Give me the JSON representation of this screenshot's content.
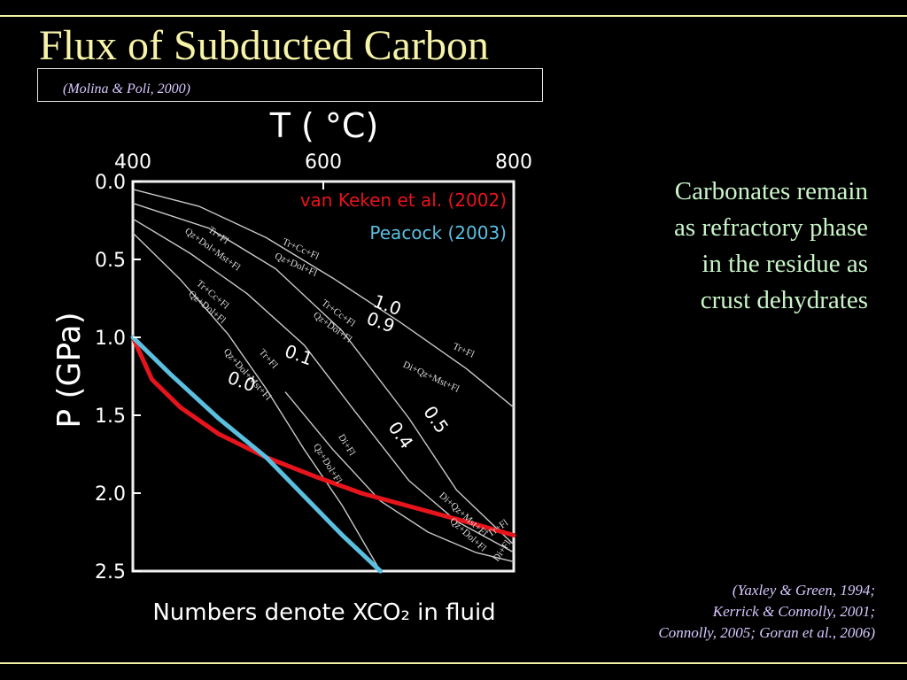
{
  "slide": {
    "title": "Flux of Subducted Carbon",
    "figure_citation": "(Molina & Poli, 2000)",
    "side_note_lines": [
      "Carbonates remain",
      "as refractory phase",
      "in the residue as",
      "crust dehydrates"
    ],
    "references": [
      "(Yaxley & Green, 1994;",
      "Kerrick & Connolly, 2001;",
      "Connolly, 2005; Goran et al., 2006)"
    ]
  },
  "colors": {
    "title": "#f7f3a8",
    "rule": "#f3efa6",
    "vankeken": "#e8141c",
    "peacock": "#5bbfe0",
    "curve": "#c8c8c8"
  },
  "chart_data": {
    "type": "line",
    "xlabel": "T ( °C)",
    "ylabel": "P (GPa)",
    "footnote": "Numbers denote XCO₂ in fluid",
    "xlim": [
      400,
      800
    ],
    "ylim": [
      0.0,
      2.5
    ],
    "y_inverted": true,
    "x_ticks": [
      400,
      600,
      800
    ],
    "x_tick_labels": [
      "400",
      "600",
      "800"
    ],
    "y_ticks": [
      0.0,
      0.5,
      1.0,
      1.5,
      2.0,
      2.5
    ],
    "y_tick_labels": [
      "0.0",
      "0.5",
      "1.0",
      "1.5",
      "2.0",
      "2.5"
    ],
    "grid": false,
    "legend_position": "top-right",
    "series": [
      {
        "name": "van Keken et al. (2002)",
        "color": "#e8141c",
        "x": [
          400,
          420,
          450,
          490,
          540,
          590,
          640,
          700,
          760,
          800
        ],
        "y": [
          1.0,
          1.27,
          1.45,
          1.62,
          1.77,
          1.89,
          2.0,
          2.1,
          2.2,
          2.27
        ]
      },
      {
        "name": "Peacock (2003)",
        "color": "#5bbfe0",
        "x": [
          400,
          440,
          490,
          540,
          580,
          620,
          660
        ],
        "y": [
          1.0,
          1.24,
          1.52,
          1.77,
          2.02,
          2.27,
          2.5
        ]
      }
    ],
    "reaction_curves": [
      {
        "x": [
          400,
          470,
          540,
          610,
          680,
          750,
          800
        ],
        "y": [
          0.05,
          0.16,
          0.36,
          0.62,
          0.9,
          1.2,
          1.45
        ]
      },
      {
        "x": [
          400,
          480,
          550,
          620,
          690,
          740,
          800
        ],
        "y": [
          0.14,
          0.3,
          0.56,
          0.96,
          1.52,
          1.98,
          2.33
        ]
      },
      {
        "x": [
          400,
          460,
          520,
          580,
          630,
          690,
          740,
          800
        ],
        "y": [
          0.24,
          0.46,
          0.72,
          1.05,
          1.45,
          1.92,
          2.18,
          2.38
        ]
      },
      {
        "x": [
          400,
          450,
          500,
          540,
          580,
          620,
          660
        ],
        "y": [
          0.33,
          0.63,
          0.98,
          1.33,
          1.72,
          2.08,
          2.5
        ]
      },
      {
        "x": [
          560,
          610,
          660,
          710,
          760,
          800
        ],
        "y": [
          1.35,
          1.72,
          2.05,
          2.25,
          2.38,
          2.44
        ]
      }
    ],
    "curve_labels": [
      {
        "text": "Tr+Fl",
        "x": 488,
        "y": 0.36,
        "angle": 36
      },
      {
        "text": "Qz+Dol+Mst+Fl",
        "x": 482,
        "y": 0.45,
        "angle": 36
      },
      {
        "text": "Tr+Cc+Fl",
        "x": 575,
        "y": 0.45,
        "angle": 24
      },
      {
        "text": "Qz+Dol+Fl",
        "x": 570,
        "y": 0.55,
        "angle": 24
      },
      {
        "text": "Tr+Cc+Fl",
        "x": 482,
        "y": 0.74,
        "angle": 40
      },
      {
        "text": "Qz+Dol+Fl",
        "x": 476,
        "y": 0.82,
        "angle": 40
      },
      {
        "text": "Tr+Cc+Fl",
        "x": 614,
        "y": 0.86,
        "angle": 36
      },
      {
        "text": "Qz+Dol+Fl",
        "x": 608,
        "y": 0.95,
        "angle": 36
      },
      {
        "text": "Tr+Fl",
        "x": 540,
        "y": 1.15,
        "angle": 48
      },
      {
        "text": "Qz+Dol+Mst+Fl",
        "x": 518,
        "y": 1.25,
        "angle": 48
      },
      {
        "text": "Tr+Fl",
        "x": 746,
        "y": 1.1,
        "angle": 25
      },
      {
        "text": "Di+Qz+Mst+Fl",
        "x": 712,
        "y": 1.27,
        "angle": 25
      },
      {
        "text": "Di+Fl",
        "x": 622,
        "y": 1.7,
        "angle": 58
      },
      {
        "text": "Qz+Dol+Fl",
        "x": 602,
        "y": 1.82,
        "angle": 58
      },
      {
        "text": "Di+Qz+Mst+Fl",
        "x": 745,
        "y": 2.15,
        "angle": 42
      },
      {
        "text": "Qz+Dol+Fl",
        "x": 750,
        "y": 2.28,
        "angle": 42
      },
      {
        "text": "Tr+Fl",
        "x": 785,
        "y": 2.24,
        "angle": -35
      },
      {
        "text": "Di+Fl",
        "x": 790,
        "y": 2.38,
        "angle": -55
      }
    ],
    "xco2_labels": [
      {
        "text": "1.0",
        "x": 665,
        "y": 0.83,
        "angle": 20
      },
      {
        "text": "0.9",
        "x": 658,
        "y": 0.94,
        "angle": 20
      },
      {
        "text": "0.1",
        "x": 572,
        "y": 1.15,
        "angle": 20
      },
      {
        "text": "0.0",
        "x": 512,
        "y": 1.32,
        "angle": 20
      },
      {
        "text": "0.5",
        "x": 713,
        "y": 1.55,
        "angle": 55
      },
      {
        "text": "0.4",
        "x": 676,
        "y": 1.65,
        "angle": 55
      }
    ]
  }
}
